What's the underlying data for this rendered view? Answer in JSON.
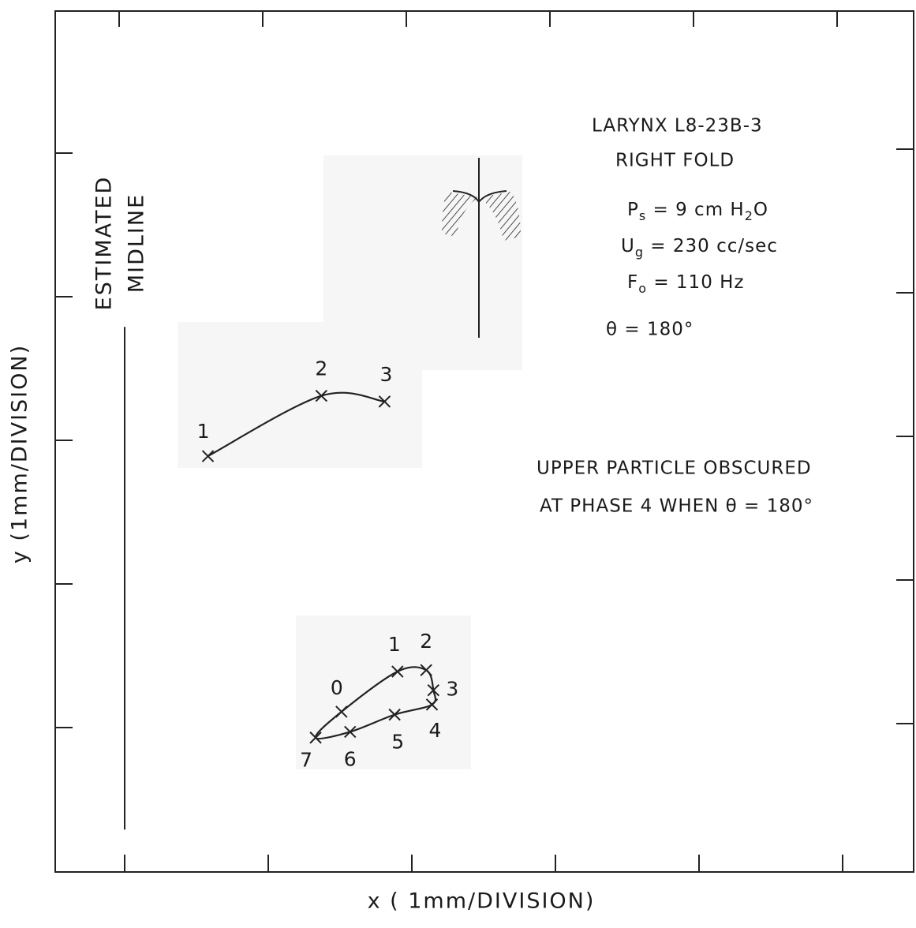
{
  "chart_data": {
    "type": "line",
    "xlabel": "x ( 1mm/DIVISION)",
    "ylabel": "y (1mm/DIVISION)",
    "xlim": [
      -0.5,
      5.5
    ],
    "ylim": [
      0,
      6
    ],
    "xticks": [
      0,
      1,
      2,
      3,
      4,
      5
    ],
    "yticks": [
      1,
      2,
      3,
      4,
      5
    ],
    "color": "#222222",
    "midline": {
      "label": [
        "ESTIMATED",
        "MIDLINE"
      ],
      "x": 0,
      "y": [
        0.29,
        3.79
      ]
    },
    "series": [
      {
        "x": [
          0.58,
          1.37,
          1.81
        ],
        "values": [
          2.89,
          3.31,
          3.27
        ],
        "point_labels": [
          "1",
          "2",
          "3"
        ],
        "closed": false
      },
      {
        "x": [
          1.51,
          1.9,
          2.1,
          2.15,
          2.14,
          1.88,
          1.57,
          1.33
        ],
        "values": [
          1.11,
          1.39,
          1.4,
          1.26,
          1.16,
          1.09,
          0.97,
          0.93
        ],
        "point_labels": [
          "0",
          "1",
          "2",
          "3",
          "4",
          "5",
          "6",
          "7"
        ],
        "closed": true
      }
    ],
    "annotations": {
      "title": "LARYNX  L8-23B-3",
      "subtitle": "RIGHT FOLD",
      "params": [
        [
          {
            "text": "P"
          },
          {
            "text": "s",
            "sub": true
          },
          {
            "text": " =  9 cm H"
          },
          {
            "text": "2",
            "sub": true
          },
          {
            "text": "O"
          }
        ],
        [
          {
            "text": "U"
          },
          {
            "text": "g",
            "sub": true
          },
          {
            "text": " = 230 cc/sec"
          }
        ],
        [
          {
            "text": "F"
          },
          {
            "text": "o",
            "sub": true
          },
          {
            "text": " = 110 Hz"
          }
        ]
      ],
      "theta": "θ = 180°",
      "note": [
        "UPPER  PARTICLE OBSCURED",
        "AT PHASE 4 WHEN  θ = 180°"
      ]
    }
  }
}
